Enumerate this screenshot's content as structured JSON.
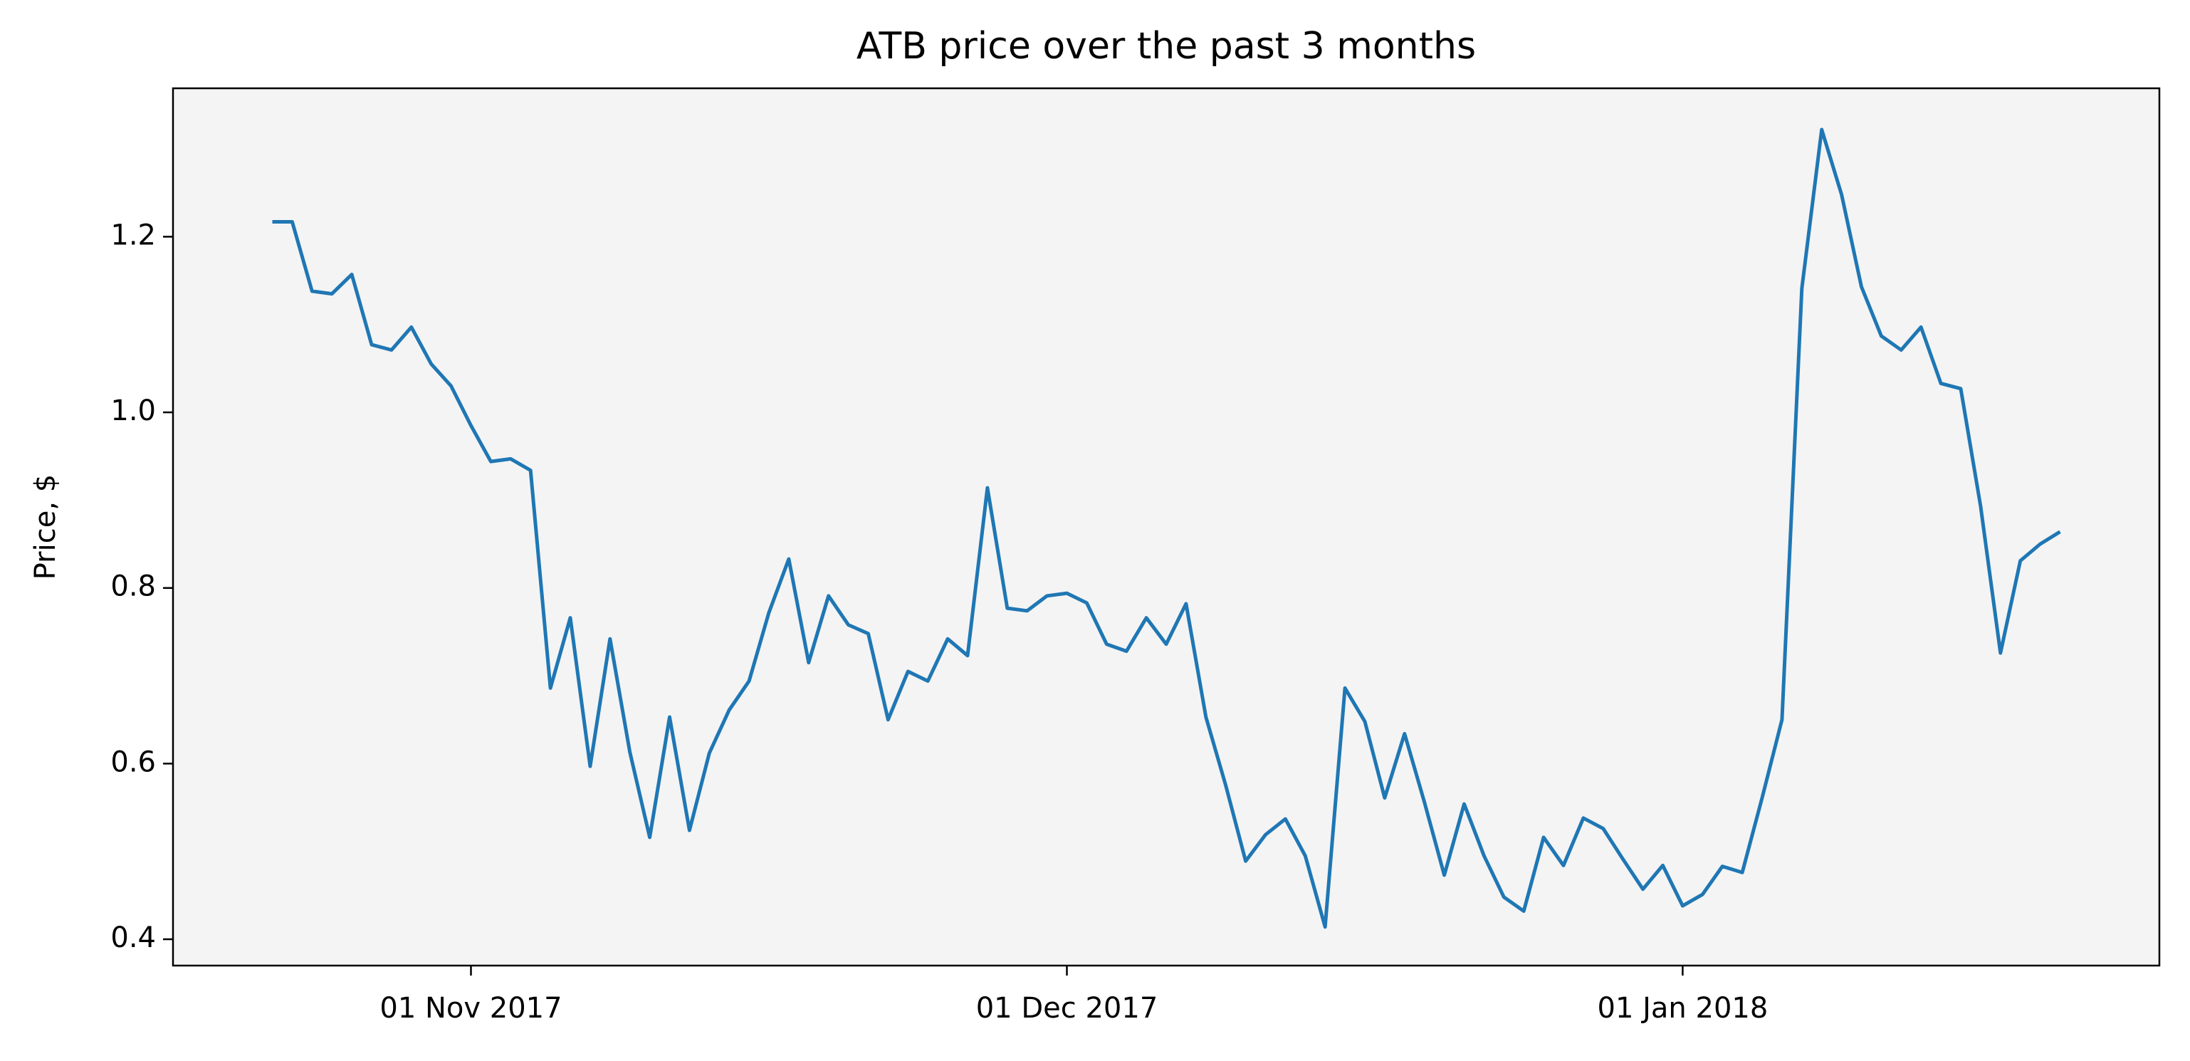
{
  "chart_data": {
    "type": "line",
    "title": "ATB price over the past 3 months",
    "y_label": "Price, $",
    "x": [
      "2017-10-22",
      "2017-10-23",
      "2017-10-24",
      "2017-10-25",
      "2017-10-26",
      "2017-10-27",
      "2017-10-28",
      "2017-10-29",
      "2017-10-30",
      "2017-10-31",
      "2017-11-01",
      "2017-11-02",
      "2017-11-03",
      "2017-11-04",
      "2017-11-05",
      "2017-11-06",
      "2017-11-07",
      "2017-11-08",
      "2017-11-09",
      "2017-11-10",
      "2017-11-11",
      "2017-11-12",
      "2017-11-13",
      "2017-11-14",
      "2017-11-15",
      "2017-11-16",
      "2017-11-17",
      "2017-11-18",
      "2017-11-19",
      "2017-11-20",
      "2017-11-21",
      "2017-11-22",
      "2017-11-23",
      "2017-11-24",
      "2017-11-25",
      "2017-11-26",
      "2017-11-27",
      "2017-11-28",
      "2017-11-29",
      "2017-11-30",
      "2017-12-01",
      "2017-12-02",
      "2017-12-03",
      "2017-12-04",
      "2017-12-05",
      "2017-12-06",
      "2017-12-07",
      "2017-12-08",
      "2017-12-09",
      "2017-12-10",
      "2017-12-11",
      "2017-12-12",
      "2017-12-13",
      "2017-12-14",
      "2017-12-15",
      "2017-12-16",
      "2017-12-17",
      "2017-12-18",
      "2017-12-19",
      "2017-12-20",
      "2017-12-21",
      "2017-12-22",
      "2017-12-23",
      "2017-12-24",
      "2017-12-25",
      "2017-12-26",
      "2017-12-27",
      "2017-12-28",
      "2017-12-29",
      "2017-12-30",
      "2017-12-31",
      "2018-01-01",
      "2018-01-02",
      "2018-01-03",
      "2018-01-04",
      "2018-01-05",
      "2018-01-06",
      "2018-01-07",
      "2018-01-08",
      "2018-01-09",
      "2018-01-10",
      "2018-01-11",
      "2018-01-12",
      "2018-01-13",
      "2018-01-14",
      "2018-01-15",
      "2018-01-16",
      "2018-01-17",
      "2018-01-18",
      "2018-01-19",
      "2018-01-20"
    ],
    "series": [
      {
        "color": "#1f77b4",
        "values": [
          1.217,
          1.217,
          1.138,
          1.135,
          1.157,
          1.077,
          1.071,
          1.097,
          1.055,
          1.03,
          0.985,
          0.944,
          0.947,
          0.934,
          0.686,
          0.766,
          0.597,
          0.742,
          0.613,
          0.516,
          0.653,
          0.524,
          0.612,
          0.661,
          0.694,
          0.772,
          0.833,
          0.715,
          0.791,
          0.758,
          0.748,
          0.65,
          0.705,
          0.694,
          0.742,
          0.723,
          0.914,
          0.777,
          0.774,
          0.791,
          0.794,
          0.783,
          0.736,
          0.728,
          0.766,
          0.736,
          0.782,
          0.653,
          0.575,
          0.489,
          0.519,
          0.537,
          0.495,
          0.414,
          0.686,
          0.648,
          0.561,
          0.634,
          0.556,
          0.473,
          0.554,
          0.495,
          0.448,
          0.432,
          0.516,
          0.484,
          0.538,
          0.526,
          0.491,
          0.457,
          0.484,
          0.438,
          0.451,
          0.483,
          0.476,
          0.561,
          0.65,
          1.141,
          1.322,
          1.248,
          1.143,
          1.087,
          1.071,
          1.097,
          1.033,
          1.027,
          0.893,
          0.726,
          0.831,
          0.85,
          0.864
        ]
      }
    ],
    "xlim": [
      "2017-10-17",
      "2018-01-25"
    ],
    "xticks": [
      {
        "value": "2017-11-01",
        "label": "01 Nov 2017"
      },
      {
        "value": "2017-12-01",
        "label": "01 Dec 2017"
      },
      {
        "value": "2018-01-01",
        "label": "01 Jan 2018"
      }
    ],
    "ylim": [
      0.37,
      1.369
    ],
    "yticks": [
      0.4,
      0.6,
      0.8,
      {
        "value": 1,
        "label": "1.0"
      },
      1.2
    ],
    "background": "#f4f4f4"
  }
}
